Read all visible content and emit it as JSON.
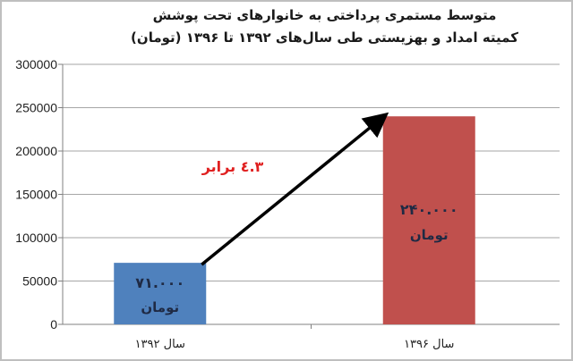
{
  "chart_data": {
    "type": "bar",
    "title": [
      "متوسط مستمری پرداختی به خانوارهای تحت پوشش",
      "کمیته امداد و بهزیستی طی سال‌های ۱۳۹۲ تا ۱۳۹۶ (تومان)"
    ],
    "categories": [
      "سال ۱۳۹۲",
      "سال ۱۳۹۶"
    ],
    "values": [
      71000,
      240000
    ],
    "colors": [
      "#4f81bd",
      "#c0504d"
    ],
    "data_labels": [
      [
        "۷۱.۰۰۰",
        "تومان"
      ],
      [
        "۲۴۰.۰۰۰",
        "تومان"
      ]
    ],
    "annotation": "۳.٤ برابر",
    "annotation_color": "#e02020",
    "arrow": "from bar 1 top to bar 2 top",
    "ylim": [
      0,
      300000
    ],
    "yticks": [
      "0",
      "50000",
      "100000",
      "150000",
      "200000",
      "250000",
      "300000"
    ],
    "grid": true,
    "xlabel": "",
    "ylabel": ""
  }
}
